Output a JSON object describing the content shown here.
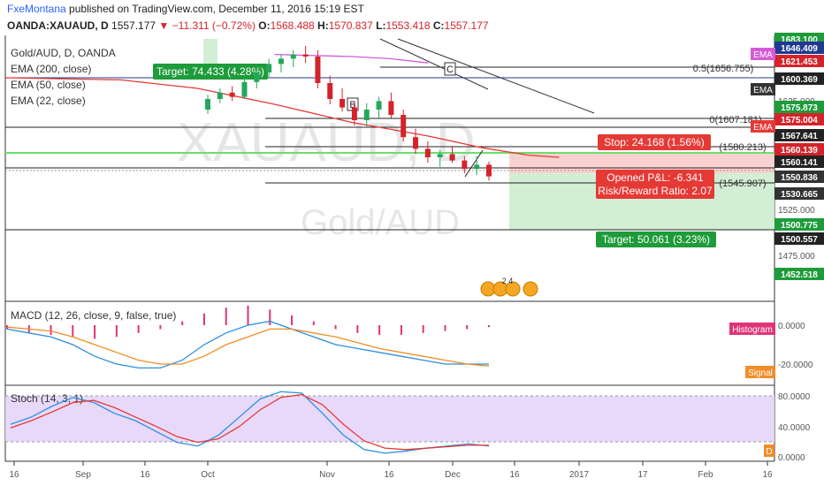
{
  "header": {
    "author": "FxeMontana",
    "published_text": "published on TradingView.com, December 11, 2016 15:19 EST",
    "symbol": "OANDA:XAUAUD, D",
    "last": "1557.177",
    "change": "−11.311 (−0.72%)",
    "o_label": "O:",
    "o": "1568.488",
    "h_label": "H:",
    "h": "1570.837",
    "l_label": "L:",
    "l": "1553.418",
    "c_label": "C:",
    "c": "1557.177"
  },
  "legend": {
    "title": "Gold/AUD, D, OANDA",
    "ema200": "EMA (200, close)",
    "ema50": "EMA (50, close)",
    "ema22": "EMA (22, close)"
  },
  "watermark": {
    "symbol": "XAUAUD, D",
    "name": "Gold/AUD"
  },
  "annotations": {
    "target_top": "Target: 74.433 (4.28%)",
    "stop": "Stop: 24.168 (1.56%)",
    "pnl": "Opened P&L: -6.341",
    "rr": "Risk/Reward Ratio: 2.07",
    "target_bottom": "Target: 50.061 (3.23%)",
    "label_b": "B",
    "label_c": "C",
    "fib_05": "0.5(1656.755)",
    "fib_0": "0(1607.181)",
    "fib_a": "(1580.213)",
    "fib_b": "(1545.907)",
    "events": "2 4"
  },
  "price_axis": {
    "ticks": [
      "1625.000",
      "1525.000",
      "1475.000"
    ],
    "tags": [
      {
        "text": "1683.100",
        "color": "#1e9b3a",
        "value": 1683.1
      },
      {
        "text": "1646.409",
        "color": "#1f3a8f",
        "value": 1646.409
      },
      {
        "text": "1621.453",
        "color": "#d4232a",
        "value": 1621.453
      },
      {
        "text": "1600.369",
        "color": "#222222",
        "value": 1600.369
      },
      {
        "text": "1575.873",
        "color": "#1e9b3a",
        "value": 1575.873
      },
      {
        "text": "1575.004",
        "color": "#d4232a",
        "value": 1575.004
      },
      {
        "text": "1567.641",
        "color": "#222222",
        "value": 1567.641
      },
      {
        "text": "1560.139",
        "color": "#d4232a",
        "value": 1560.139
      },
      {
        "text": "1560.141",
        "color": "#222222",
        "value": 1560.141
      },
      {
        "text": "1550.836",
        "color": "#333333",
        "value": 1550.836
      },
      {
        "text": "1530.665",
        "color": "#333333",
        "value": 1530.665
      },
      {
        "text": "1500.775",
        "color": "#1e9b3a",
        "value": 1500.775
      },
      {
        "text": "1500.557",
        "color": "#222222",
        "value": 1500.557
      },
      {
        "text": "1452.518",
        "color": "#1e9b3a",
        "value": 1452.518
      }
    ],
    "ema_badges": [
      "EMA",
      "EMA",
      "EMA"
    ]
  },
  "macd_panel": {
    "title": "MACD (12, 26, close, 9, false, true)",
    "ticks": [
      "0.0000",
      "-20.0000"
    ],
    "histogram_label": "Histogram",
    "signal_label": "Signal"
  },
  "stoch_panel": {
    "title": "Stoch (14, 3, 1)",
    "ticks": [
      "80.0000",
      "40.0000",
      "0.0000"
    ],
    "d_label": "D"
  },
  "time_axis": [
    "16",
    "Sep",
    "16",
    "Oct",
    "Nov",
    "16",
    "Dec",
    "16",
    "2017",
    "17",
    "Feb",
    "16"
  ],
  "chart_data": {
    "type": "line",
    "title": "Gold/AUD, D, OANDA",
    "y_range": [
      1440,
      1690
    ],
    "series": [
      {
        "name": "EMA (22, close)",
        "color": "#e53935",
        "points": [
          [
            0.0,
            1650
          ],
          [
            0.15,
            1648
          ],
          [
            0.25,
            1640
          ],
          [
            0.35,
            1625
          ],
          [
            0.45,
            1608
          ],
          [
            0.55,
            1595
          ],
          [
            0.62,
            1584
          ],
          [
            0.68,
            1577
          ],
          [
            0.72,
            1575
          ]
        ]
      },
      {
        "name": "EMA (200, close)",
        "color": "#d65ad6",
        "points": [
          [
            0.35,
            1672
          ],
          [
            0.45,
            1670
          ],
          [
            0.5,
            1668
          ],
          [
            0.55,
            1664
          ]
        ]
      }
    ],
    "levels": [
      1656.755,
      1607.181,
      1580.213,
      1545.907,
      1600.369,
      1575.004,
      1560.139,
      1550.836,
      1500.557
    ],
    "candles_ohlc": [
      [
        1620,
        1634,
        1616,
        1630
      ],
      [
        1630,
        1640,
        1626,
        1636
      ],
      [
        1636,
        1642,
        1628,
        1632
      ],
      [
        1632,
        1650,
        1630,
        1646
      ],
      [
        1646,
        1660,
        1640,
        1655
      ],
      [
        1655,
        1668,
        1650,
        1663
      ],
      [
        1663,
        1672,
        1655,
        1668
      ],
      [
        1668,
        1676,
        1660,
        1672
      ],
      [
        1672,
        1680,
        1664,
        1670
      ],
      [
        1670,
        1676,
        1640,
        1645
      ],
      [
        1645,
        1652,
        1625,
        1630
      ],
      [
        1630,
        1640,
        1618,
        1622
      ],
      [
        1622,
        1628,
        1605,
        1610
      ],
      [
        1610,
        1626,
        1604,
        1620
      ],
      [
        1620,
        1632,
        1612,
        1628
      ],
      [
        1628,
        1636,
        1612,
        1615
      ],
      [
        1615,
        1620,
        1590,
        1594
      ],
      [
        1594,
        1602,
        1578,
        1583
      ],
      [
        1583,
        1590,
        1570,
        1575
      ],
      [
        1575,
        1582,
        1566,
        1578
      ],
      [
        1578,
        1586,
        1570,
        1572
      ],
      [
        1572,
        1576,
        1560,
        1564
      ],
      [
        1564,
        1576,
        1558,
        1568
      ],
      [
        1568,
        1571,
        1553,
        1557
      ]
    ],
    "macd": {
      "macd_line": [
        -2,
        -4,
        -6,
        -10,
        -16,
        -20,
        -22,
        -22,
        -18,
        -10,
        -4,
        0,
        2,
        -2,
        -6,
        -10,
        -12,
        -14,
        -16,
        -18,
        -20,
        -20,
        -20
      ],
      "signal_line": [
        -1,
        -2,
        -3,
        -6,
        -10,
        -14,
        -18,
        -20,
        -20,
        -16,
        -10,
        -6,
        -2,
        -2,
        -4,
        -6,
        -9,
        -12,
        -14,
        -16,
        -18,
        -20,
        -21
      ],
      "histogram": [
        -2,
        -4,
        -5,
        -6,
        -7,
        -6,
        -4,
        -2,
        2,
        6,
        9,
        10,
        8,
        5,
        2,
        -2,
        -4,
        -5,
        -5,
        -4,
        -3,
        -2,
        -1
      ]
    },
    "stoch": {
      "k": [
        45,
        55,
        70,
        82,
        75,
        60,
        50,
        35,
        20,
        15,
        30,
        55,
        80,
        90,
        88,
        60,
        30,
        10,
        5,
        8,
        12,
        15,
        18,
        15
      ],
      "d": [
        40,
        50,
        62,
        75,
        78,
        68,
        55,
        42,
        28,
        20,
        25,
        42,
        65,
        82,
        86,
        72,
        45,
        22,
        12,
        10,
        12,
        14,
        16,
        16
      ],
      "upper": 80,
      "lower": 20
    }
  }
}
